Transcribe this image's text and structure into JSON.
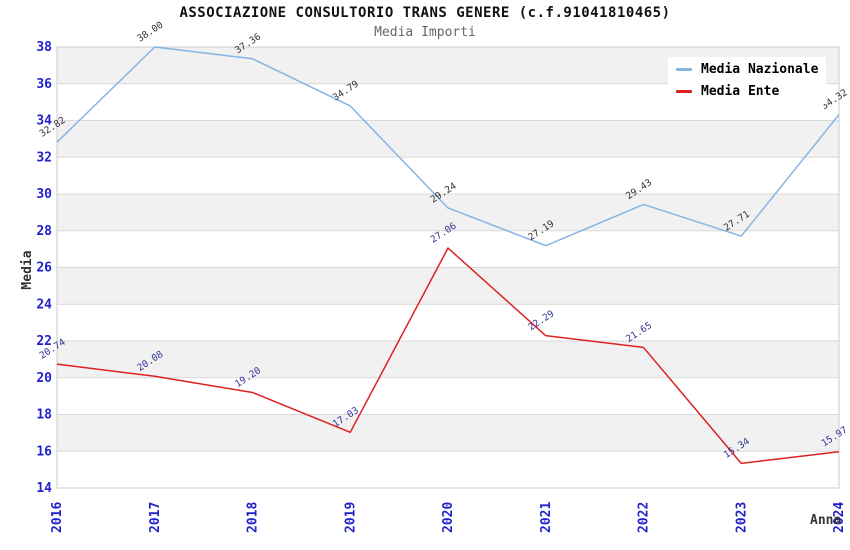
{
  "header": {
    "title": "ASSOCIAZIONE CONSULTORIO TRANS GENERE (c.f.91041810465)",
    "subtitle": "Media Importi"
  },
  "colors": {
    "tick_label": "#2222cc",
    "axis_title": "#333333",
    "band_fill": "#f1f1f1",
    "gridline": "#d9d9d9",
    "plot_border": "#cccccc",
    "title_text": "#111111",
    "subtitle_text": "#666666",
    "legend_text": "#000000"
  },
  "chart_data": {
    "type": "line",
    "title": "ASSOCIAZIONE CONSULTORIO TRANS GENERE (c.f.91041810465)",
    "subtitle": "Media Importi",
    "categories": [
      "2016",
      "2017",
      "2018",
      "2019",
      "2020",
      "2021",
      "2022",
      "2023",
      "2024"
    ],
    "series": [
      {
        "name": "Media Nazionale",
        "color": "#85b5e5",
        "label_color": "#333333",
        "values": [
          32.82,
          38.0,
          37.36,
          34.79,
          29.24,
          27.19,
          29.43,
          27.71,
          34.32
        ]
      },
      {
        "name": "Media Ente",
        "color": "#dd2222",
        "label_color": "#333399",
        "values": [
          20.74,
          20.08,
          19.2,
          17.03,
          27.06,
          22.29,
          21.65,
          15.34,
          15.97
        ]
      }
    ],
    "xlabel": "Anno",
    "ylabel": "Media",
    "ylim": [
      14,
      38
    ],
    "ytick_step": 2,
    "yticks": [
      14,
      16,
      18,
      20,
      22,
      24,
      26,
      28,
      30,
      32,
      34,
      36,
      38
    ],
    "grid": true,
    "banded_background": true,
    "point_labels_decimals": 2,
    "legend_position": "top-right"
  }
}
